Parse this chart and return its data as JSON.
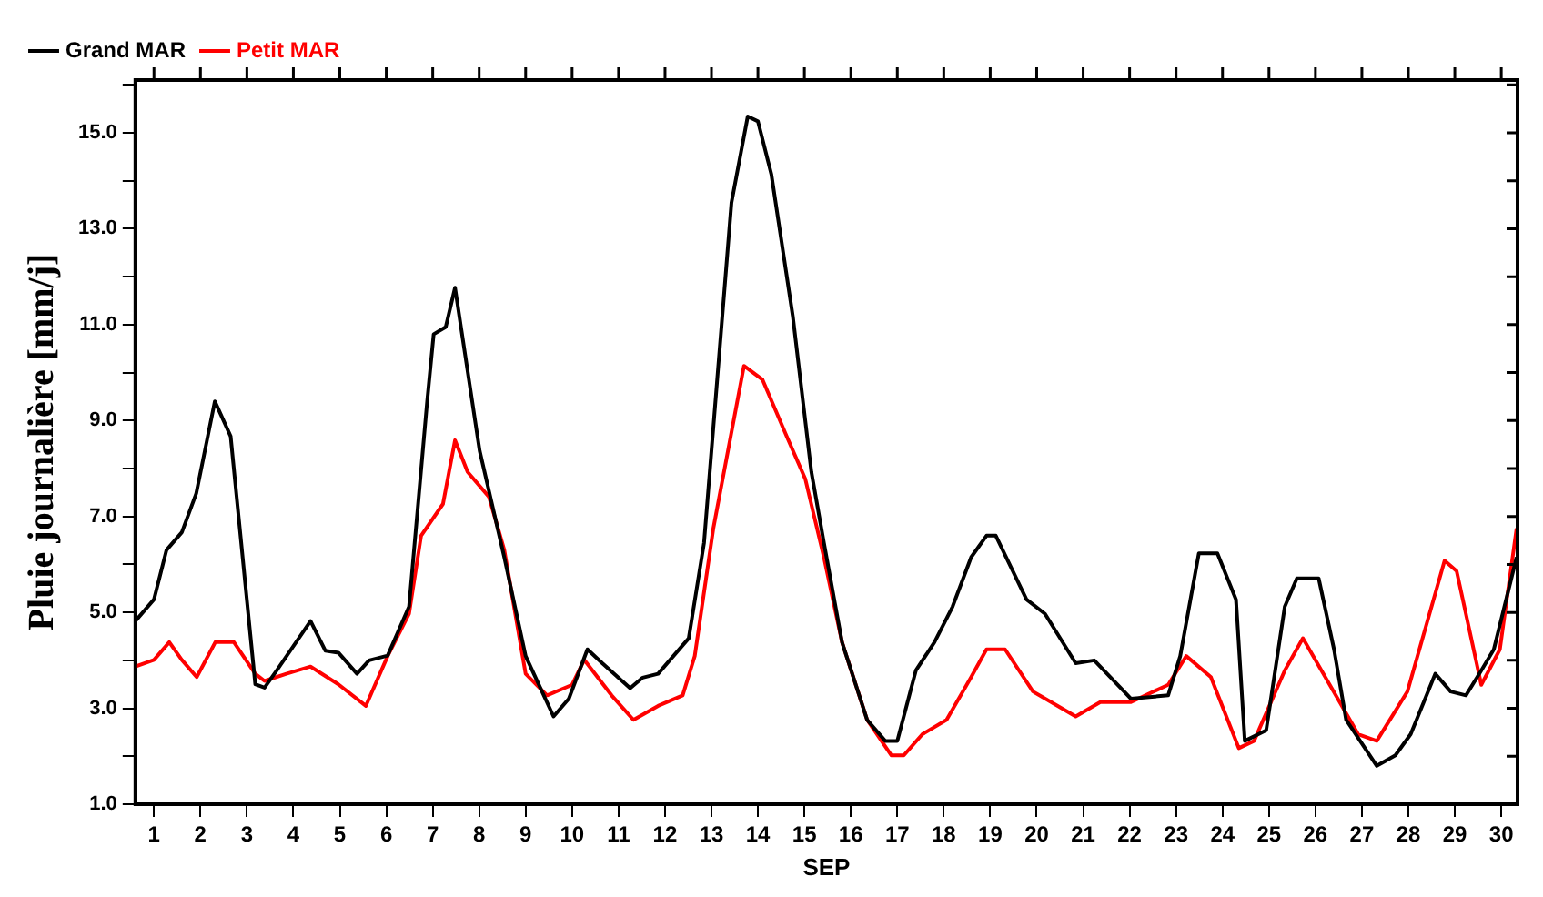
{
  "chart_data": {
    "type": "line",
    "xlabel": "SEP",
    "ylabel": "Pluie journalière [mm/j]",
    "xlim": [
      0.6,
      30.35
    ],
    "xticks": [
      1,
      2,
      3,
      4,
      5,
      6,
      7,
      8,
      9,
      10,
      11,
      12,
      13,
      14,
      15,
      16,
      17,
      18,
      19,
      20,
      21,
      22,
      23,
      24,
      25,
      26,
      27,
      28,
      29,
      30
    ],
    "ylim": [
      1,
      16.1
    ],
    "yticks": [
      {
        "value": 1,
        "label": "1.0"
      },
      {
        "value": 2,
        "label": null
      },
      {
        "value": 3,
        "label": "3.0"
      },
      {
        "value": 4,
        "label": null
      },
      {
        "value": 5,
        "label": "5.0"
      },
      {
        "value": 6,
        "label": null
      },
      {
        "value": 7,
        "label": "7.0"
      },
      {
        "value": 8,
        "label": null
      },
      {
        "value": 9,
        "label": "9.0"
      },
      {
        "value": 10,
        "label": null
      },
      {
        "value": 11,
        "label": "11.0"
      },
      {
        "value": 12,
        "label": null
      },
      {
        "value": 13,
        "label": "13.0"
      },
      {
        "value": 14,
        "label": null
      },
      {
        "value": 15,
        "label": "15.0"
      },
      {
        "value": 16,
        "label": null
      }
    ],
    "grid": false,
    "legend": "top left",
    "marker": "none",
    "line_style": "solid",
    "series": [
      {
        "name": "Grand MAR",
        "color": "#000000",
        "x": [
          0.6,
          1.0,
          1.27,
          1.6,
          1.91,
          2.31,
          2.65,
          3.18,
          3.38,
          3.65,
          4.37,
          4.69,
          4.97,
          5.37,
          5.63,
          6.03,
          6.49,
          6.88,
          7.02,
          7.28,
          7.48,
          8.01,
          8.54,
          9.0,
          9.6,
          9.93,
          10.33,
          10.65,
          11.25,
          11.52,
          11.85,
          12.51,
          12.84,
          13.43,
          13.78,
          14.0,
          14.29,
          14.75,
          15.15,
          15.42,
          15.81,
          16.35,
          16.74,
          17.0,
          17.4,
          17.8,
          18.19,
          18.59,
          18.92,
          19.12,
          19.78,
          20.18,
          20.84,
          21.24,
          22.03,
          22.83,
          23.09,
          23.49,
          23.89,
          24.29,
          24.48,
          24.94,
          25.34,
          25.6,
          26.07,
          26.4,
          26.66,
          27.32,
          27.72,
          28.05,
          28.58,
          28.91,
          29.24,
          29.57,
          29.84,
          30.33
        ],
        "values": [
          4.82,
          5.27,
          6.3,
          6.67,
          7.48,
          9.4,
          8.67,
          3.5,
          3.43,
          3.8,
          4.82,
          4.2,
          4.16,
          3.72,
          4.0,
          4.1,
          5.12,
          9.4,
          10.8,
          10.95,
          11.77,
          8.37,
          6.15,
          4.09,
          2.83,
          3.2,
          4.23,
          3.94,
          3.42,
          3.64,
          3.72,
          4.46,
          6.45,
          13.54,
          15.34,
          15.24,
          14.13,
          11.18,
          7.93,
          6.45,
          4.38,
          2.76,
          2.32,
          2.32,
          3.79,
          4.38,
          5.12,
          6.15,
          6.6,
          6.6,
          5.27,
          4.97,
          3.94,
          4.0,
          3.2,
          3.27,
          4.09,
          6.23,
          6.23,
          5.27,
          2.32,
          2.54,
          5.12,
          5.71,
          5.71,
          4.23,
          2.76,
          1.8,
          2.02,
          2.46,
          3.72,
          3.35,
          3.27,
          3.79,
          4.23,
          6.15
        ]
      },
      {
        "name": "Petit MAR",
        "color": "#ff0000",
        "x": [
          0.6,
          1.0,
          1.33,
          1.6,
          1.92,
          2.32,
          2.72,
          3.18,
          3.38,
          3.85,
          4.37,
          4.97,
          5.56,
          6.03,
          6.49,
          6.75,
          7.22,
          7.48,
          7.75,
          8.21,
          8.54,
          9.0,
          9.46,
          10.0,
          10.26,
          10.85,
          11.32,
          11.85,
          12.38,
          12.64,
          13.04,
          13.7,
          14.1,
          14.62,
          15.02,
          15.42,
          15.81,
          16.35,
          16.87,
          17.14,
          17.54,
          18.06,
          18.59,
          18.92,
          19.32,
          19.92,
          20.84,
          21.37,
          22.03,
          22.83,
          23.22,
          23.75,
          24.35,
          24.68,
          25.34,
          25.73,
          26.13,
          26.92,
          27.32,
          27.98,
          28.78,
          29.04,
          29.57,
          29.97,
          30.33
        ],
        "values": [
          3.87,
          4.01,
          4.38,
          4.01,
          3.65,
          4.38,
          4.38,
          3.72,
          3.57,
          3.72,
          3.87,
          3.5,
          3.05,
          4.09,
          4.97,
          6.6,
          7.26,
          8.59,
          7.93,
          7.41,
          6.3,
          3.72,
          3.27,
          3.49,
          4.01,
          3.27,
          2.76,
          3.05,
          3.27,
          4.09,
          6.75,
          10.14,
          9.85,
          8.67,
          7.78,
          6.15,
          4.38,
          2.76,
          2.02,
          2.02,
          2.46,
          2.76,
          3.65,
          4.23,
          4.23,
          3.35,
          2.83,
          3.13,
          3.13,
          3.49,
          4.09,
          3.65,
          2.17,
          2.32,
          3.79,
          4.46,
          3.79,
          2.46,
          2.32,
          3.35,
          6.08,
          5.86,
          3.49,
          4.23,
          6.75
        ]
      }
    ]
  }
}
